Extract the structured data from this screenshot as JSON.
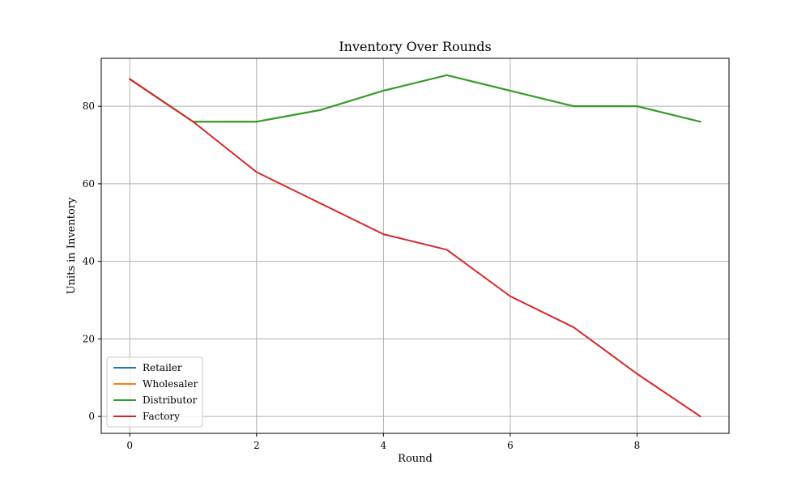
{
  "chart_data": {
    "type": "line",
    "title": "Inventory Over Rounds",
    "xlabel": "Round",
    "ylabel": "Units in Inventory",
    "x": [
      0,
      1,
      2,
      3,
      4,
      5,
      6,
      7,
      8,
      9
    ],
    "xlim": [
      -0.45,
      9.45
    ],
    "ylim": [
      -4.35,
      92.35
    ],
    "xticks": [
      0,
      2,
      4,
      6,
      8
    ],
    "yticks": [
      0,
      20,
      40,
      60,
      80
    ],
    "grid": true,
    "legend_position": "lower-left",
    "series": [
      {
        "name": "Retailer",
        "color": "#1f77b4",
        "values": [
          87,
          76,
          76,
          79,
          84,
          88,
          84,
          80,
          80,
          76
        ]
      },
      {
        "name": "Wholesaler",
        "color": "#ff7f0e",
        "values": [
          87,
          76,
          76,
          79,
          84,
          88,
          84,
          80,
          80,
          76
        ]
      },
      {
        "name": "Distributor",
        "color": "#2ca02c",
        "values": [
          87,
          76,
          76,
          79,
          84,
          88,
          84,
          80,
          80,
          76
        ]
      },
      {
        "name": "Factory",
        "color": "#d62728",
        "values": [
          87,
          76,
          63,
          55,
          47,
          43,
          31,
          23,
          11,
          0
        ]
      }
    ]
  }
}
